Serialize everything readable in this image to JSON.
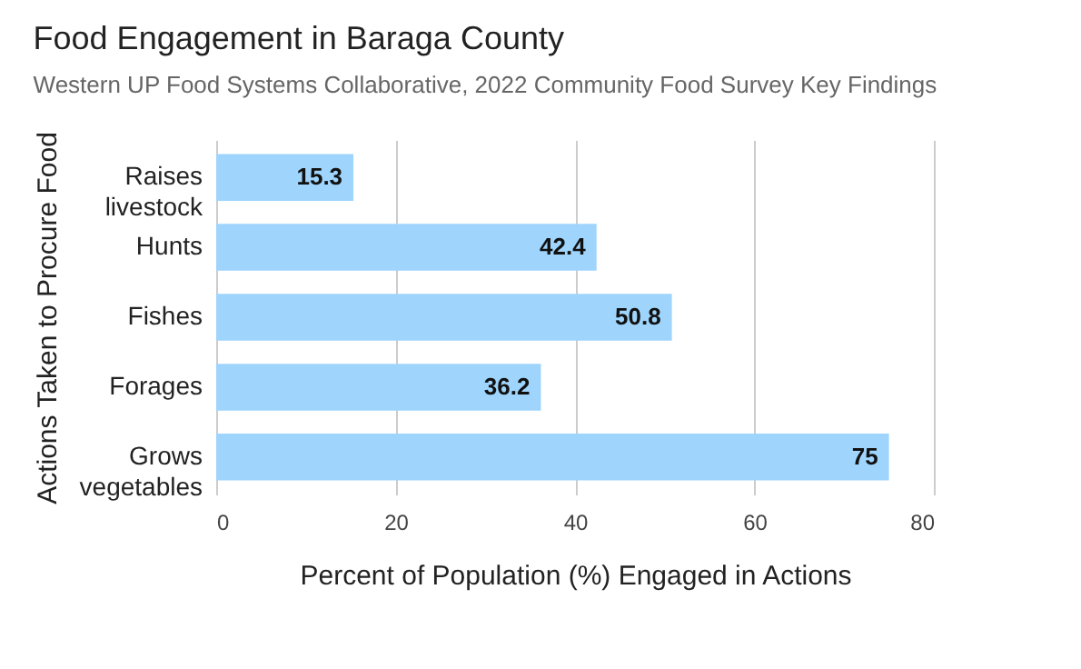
{
  "chart_data": {
    "type": "bar",
    "orientation": "horizontal",
    "title": "Food Engagement in Baraga County",
    "subtitle": "Western UP Food Systems Collaborative, 2022 Community Food Survey Key Findings",
    "xlabel": "Percent of Population (%) Engaged in Actions",
    "ylabel": "Actions Taken to Procure Food",
    "categories": [
      "Raises livestock",
      "Hunts",
      "Fishes",
      "Forages",
      "Grows vegetables"
    ],
    "values": [
      15.3,
      42.4,
      50.8,
      36.2,
      75
    ],
    "color": "#9fd5fd",
    "xlim": [
      0,
      80
    ],
    "xticks": [
      0,
      20,
      40,
      60,
      80
    ],
    "grid": "x",
    "data_labels": true
  }
}
